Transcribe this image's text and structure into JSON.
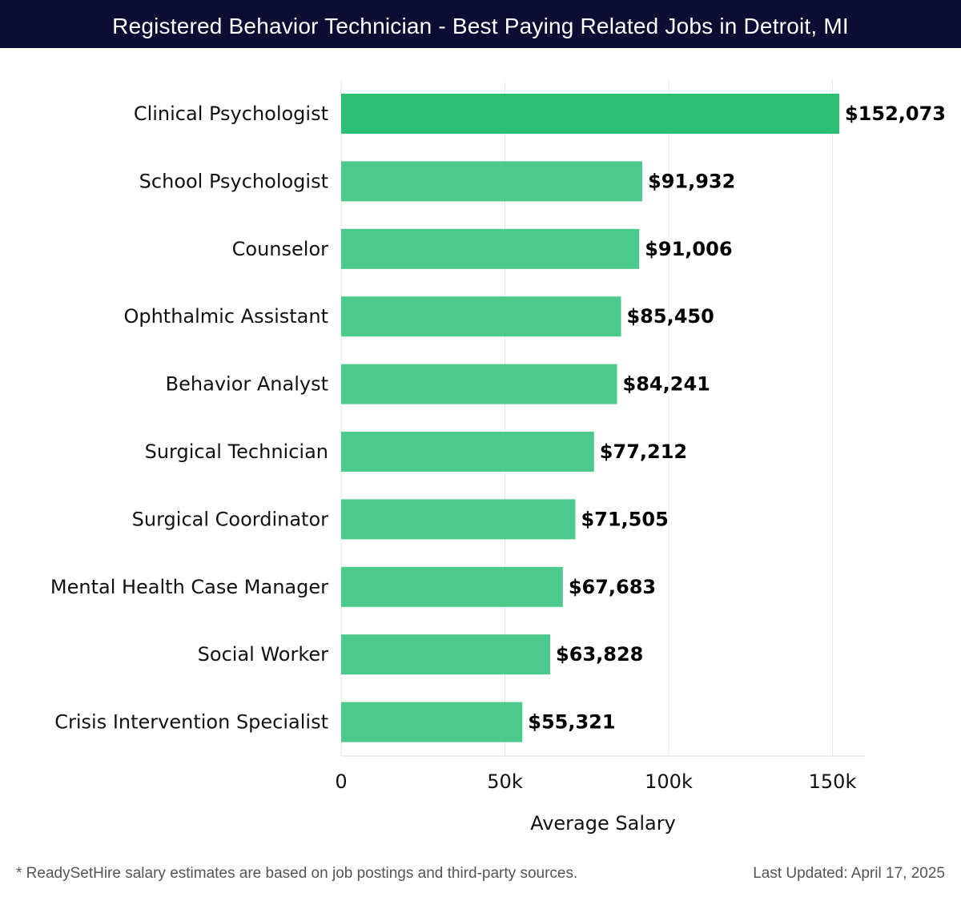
{
  "title": "Registered Behavior Technician - Best Paying Related Jobs in Detroit, MI",
  "footnote": "* ReadySetHire salary estimates are based on job postings and third-party sources.",
  "last_updated": "Last Updated: April 17, 2025",
  "colors": {
    "title_bg": "#0d0d33",
    "top_bar": "#2bbf74",
    "bar": "#4cc98c",
    "grid": "#e6e6e6",
    "text": "#111111"
  },
  "chart_data": {
    "type": "bar",
    "orientation": "horizontal",
    "title": "Registered Behavior Technician - Best Paying Related Jobs in Detroit, MI",
    "xlabel": "Average Salary",
    "ylabel": "",
    "xlim": [
      0,
      160000
    ],
    "ticks": [
      0,
      50000,
      100000,
      150000
    ],
    "tick_labels": [
      "0",
      "50k",
      "100k",
      "150k"
    ],
    "categories": [
      "Clinical Psychologist",
      "School Psychologist",
      "Counselor",
      "Ophthalmic Assistant",
      "Behavior Analyst",
      "Surgical Technician",
      "Surgical Coordinator",
      "Mental Health Case Manager",
      "Social Worker",
      "Crisis Intervention Specialist"
    ],
    "values": [
      152073,
      91932,
      91006,
      85450,
      84241,
      77212,
      71505,
      67683,
      63828,
      55321
    ],
    "value_labels": [
      "$152,073",
      "$91,932",
      "$91,006",
      "$85,450",
      "$84,241",
      "$77,212",
      "$71,505",
      "$67,683",
      "$63,828",
      "$55,321"
    ],
    "grid": true
  }
}
